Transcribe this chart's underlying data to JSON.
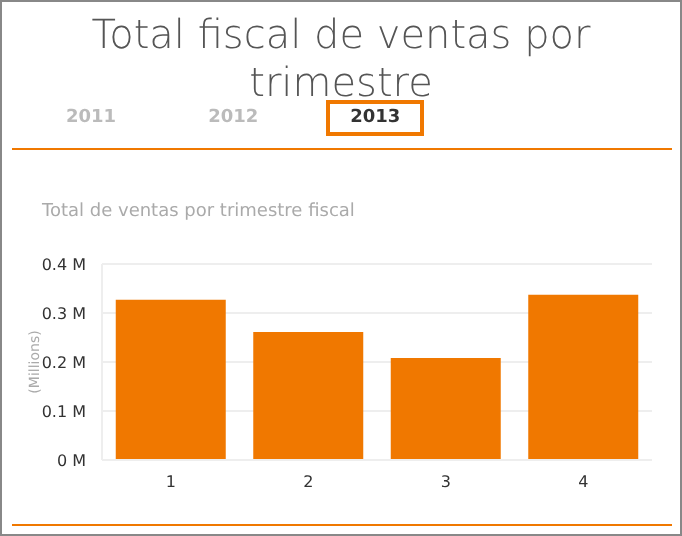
{
  "chart_data": {
    "type": "bar",
    "title": "Total fiscal de ventas por trimestre",
    "subtitle": "Total de ventas por trimestre fiscal",
    "ylabel": "(Millions)",
    "annotations": [
      "2011",
      "2012",
      "2013"
    ],
    "categories": [
      "1",
      "2",
      "3",
      "4"
    ],
    "values": [
      0.327,
      0.261,
      0.208,
      0.337
    ],
    "color": "#f07800",
    "ylim": [
      0,
      0.4
    ],
    "yticks": [
      {
        "value": 0,
        "label": "0 M"
      },
      {
        "value": 0.1,
        "label": "0.1 M"
      },
      {
        "value": 0.2,
        "label": "0.2 M"
      },
      {
        "value": 0.3,
        "label": "0.3 M"
      },
      {
        "value": 0.4,
        "label": "0.4 M"
      }
    ],
    "grid": "y"
  }
}
